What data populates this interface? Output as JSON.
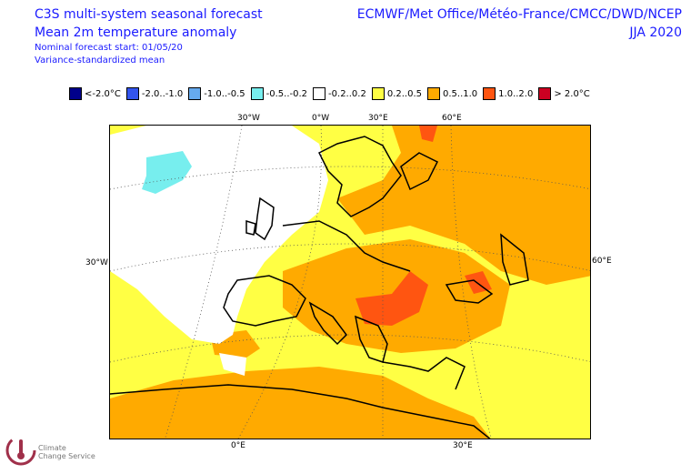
{
  "header": {
    "line1": "C3S multi-system seasonal forecast",
    "line2": "Mean 2m temperature anomaly",
    "line3": "Nominal forecast start: 01/05/20",
    "line4": "Variance-standardized mean",
    "centres": "ECMWF/Met Office/Météo-France/CMCC/DWD/NCEP",
    "season": "JJA 2020"
  },
  "legend": [
    {
      "label": "<-2.0°C",
      "color": "#00008b"
    },
    {
      "label": "-2.0..-1.0",
      "color": "#3355ee"
    },
    {
      "label": "-1.0..-0.5",
      "color": "#66aaee"
    },
    {
      "label": "-0.5..-0.2",
      "color": "#77eeee"
    },
    {
      "label": "-0.2..0.2",
      "color": "#ffffff"
    },
    {
      "label": "0.2..0.5",
      "color": "#ffff44"
    },
    {
      "label": "0.5..1.0",
      "color": "#ffaa00"
    },
    {
      "label": "1.0..2.0",
      "color": "#ff5511"
    },
    {
      "label": "> 2.0°C",
      "color": "#cc0022"
    }
  ],
  "axes": {
    "top": [
      "30°W",
      "0°W",
      "30°E",
      "60°E"
    ],
    "left": "30°W",
    "right": "60°E",
    "bottom": [
      "0°E",
      "30°E"
    ]
  },
  "logo": {
    "line1": "Climate",
    "line2": "Change Service"
  }
}
